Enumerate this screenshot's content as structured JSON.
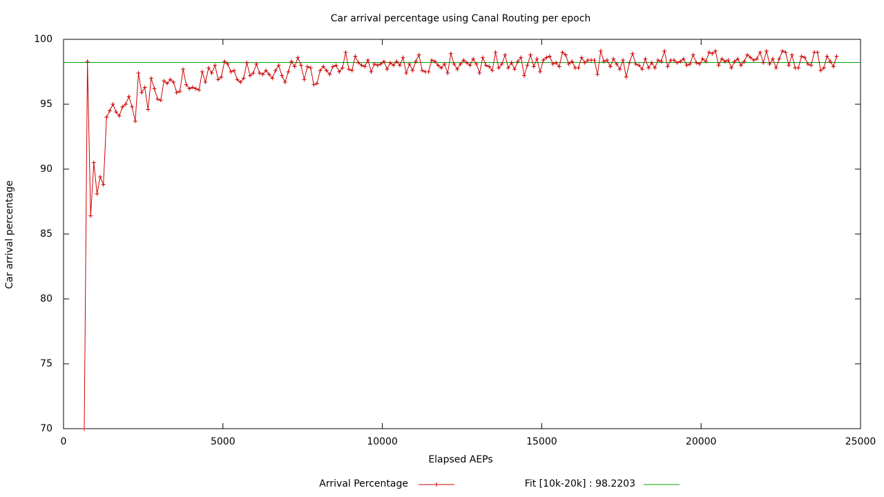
{
  "chart_data": {
    "type": "line",
    "title": "Car arrival percentage using Canal Routing per epoch",
    "xlabel": "Elapsed AEPs",
    "ylabel": "Car arrival percentage",
    "xlim": [
      0,
      25000
    ],
    "xticks": [
      0,
      5000,
      10000,
      15000,
      20000,
      25000
    ],
    "ylim": [
      70,
      100
    ],
    "yticks": [
      70,
      75,
      80,
      85,
      90,
      95,
      100
    ],
    "x": [
      650,
      750,
      850,
      950,
      1050,
      1150,
      1250,
      1350,
      1450,
      1550,
      1650,
      1750,
      1850,
      1950,
      2050,
      2150,
      2250,
      2350,
      2450,
      2550,
      2650,
      2750,
      2850,
      2950,
      3050,
      3150,
      3250,
      3350,
      3450,
      3550,
      3650,
      3750,
      3850,
      3950,
      4050,
      4150,
      4250,
      4350,
      4450,
      4550,
      4650,
      4750,
      4850,
      4950,
      5050,
      5150,
      5250,
      5350,
      5450,
      5550,
      5650,
      5750,
      5850,
      5950,
      6050,
      6150,
      6250,
      6350,
      6450,
      6550,
      6650,
      6750,
      6850,
      6950,
      7050,
      7150,
      7250,
      7350,
      7450,
      7550,
      7650,
      7750,
      7850,
      7950,
      8050,
      8150,
      8250,
      8350,
      8450,
      8550,
      8650,
      8750,
      8850,
      8950,
      9050,
      9150,
      9250,
      9350,
      9450,
      9550,
      9650,
      9750,
      9850,
      9950,
      10050,
      10150,
      10250,
      10350,
      10450,
      10550,
      10650,
      10750,
      10850,
      10950,
      11050,
      11150,
      11250,
      11350,
      11450,
      11550,
      11650,
      11750,
      11850,
      11950,
      12050,
      12150,
      12250,
      12350,
      12450,
      12550,
      12650,
      12750,
      12850,
      12950,
      13050,
      13150,
      13250,
      13350,
      13450,
      13550,
      13650,
      13750,
      13850,
      13950,
      14050,
      14150,
      14250,
      14350,
      14450,
      14550,
      14650,
      14750,
      14850,
      14950,
      15050,
      15150,
      15250,
      15350,
      15450,
      15550,
      15650,
      15750,
      15850,
      15950,
      16050,
      16150,
      16250,
      16350,
      16450,
      16550,
      16650,
      16750,
      16850,
      16950,
      17050,
      17150,
      17250,
      17350,
      17450,
      17550,
      17650,
      17750,
      17850,
      17950,
      18050,
      18150,
      18250,
      18350,
      18450,
      18550,
      18650,
      18750,
      18850,
      18950,
      19050,
      19150,
      19250,
      19350,
      19450,
      19550,
      19650,
      19750,
      19850,
      19950,
      20050,
      20150,
      20250,
      20350,
      20450,
      20550,
      20650,
      20750,
      20850,
      20950,
      21050,
      21150,
      21250,
      21350,
      21450,
      21550,
      21650,
      21750,
      21850,
      21950,
      22050,
      22150,
      22250,
      22350,
      22450,
      22550,
      22650,
      22750,
      22850,
      22950,
      23050,
      23150,
      23250,
      23350,
      23450,
      23550,
      23650,
      23750,
      23850,
      23950,
      24050,
      24150,
      24250
    ],
    "series": [
      {
        "name": "Arrival Percentage",
        "color": "#cc0000",
        "values": [
          70,
          98.3,
          86.4,
          90.5,
          88.1,
          89.4,
          88.8,
          94.0,
          94.5,
          95.0,
          94.4,
          94.1,
          94.8,
          95.0,
          95.6,
          94.8,
          93.7,
          97.4,
          95.9,
          96.3,
          94.6,
          97.0,
          96.2,
          95.4,
          95.3,
          96.8,
          96.6,
          96.9,
          96.7,
          95.9,
          96.0,
          97.7,
          96.5,
          96.2,
          96.3,
          96.2,
          96.1,
          97.5,
          96.7,
          97.8,
          97.4,
          98.0,
          96.9,
          97.1,
          98.3,
          98.1,
          97.5,
          97.6,
          96.9,
          96.7,
          97.0,
          98.2,
          97.2,
          97.4,
          98.1,
          97.4,
          97.3,
          97.6,
          97.3,
          97.0,
          97.6,
          98.0,
          97.2,
          96.7,
          97.5,
          98.3,
          97.9,
          98.6,
          98.0,
          96.9,
          97.9,
          97.8,
          96.5,
          96.6,
          97.6,
          97.9,
          97.6,
          97.3,
          97.9,
          98.0,
          97.5,
          97.8,
          99.0,
          97.7,
          97.6,
          98.7,
          98.2,
          98.0,
          97.9,
          98.4,
          97.5,
          98.1,
          98.0,
          98.1,
          98.3,
          97.7,
          98.2,
          98.0,
          98.3,
          98.0,
          98.6,
          97.4,
          98.1,
          97.6,
          98.3,
          98.8,
          97.6,
          97.5,
          97.5,
          98.4,
          98.3,
          98.0,
          97.8,
          98.1,
          97.4,
          98.9,
          98.1,
          97.7,
          98.1,
          98.4,
          98.2,
          98.0,
          98.5,
          98.1,
          97.4,
          98.6,
          98.0,
          97.9,
          97.6,
          99.0,
          97.8,
          98.1,
          98.8,
          97.8,
          98.2,
          97.7,
          98.3,
          98.6,
          97.2,
          98.0,
          98.8,
          97.9,
          98.5,
          97.5,
          98.4,
          98.6,
          98.7,
          98.1,
          98.2,
          97.9,
          99.0,
          98.8,
          98.1,
          98.3,
          97.8,
          97.8,
          98.6,
          98.2,
          98.4,
          98.4,
          98.4,
          97.3,
          99.1,
          98.3,
          98.4,
          97.9,
          98.5,
          98.1,
          97.7,
          98.4,
          97.1,
          98.2,
          98.9,
          98.1,
          98.0,
          97.7,
          98.5,
          97.8,
          98.2,
          97.8,
          98.4,
          98.3,
          99.1,
          97.9,
          98.4,
          98.4,
          98.2,
          98.3,
          98.5,
          98.0,
          98.1,
          98.8,
          98.2,
          98.1,
          98.5,
          98.3,
          99.0,
          98.9,
          99.1,
          98.0,
          98.5,
          98.3,
          98.4,
          97.8,
          98.3,
          98.5,
          98.0,
          98.3,
          98.8,
          98.6,
          98.4,
          98.5,
          99.0,
          98.2,
          99.1,
          98.1,
          98.5,
          97.8,
          98.5,
          99.1,
          99.0,
          98.0,
          98.8,
          97.8,
          97.8,
          98.7,
          98.6,
          98.1,
          98.0,
          99.0,
          99.0,
          97.6,
          97.8,
          98.7,
          98.3,
          97.9,
          98.7
        ]
      }
    ],
    "fit": {
      "name": "Fit [10k-20k] : 98.2203",
      "value": 98.2203,
      "color": "#00a000"
    }
  }
}
